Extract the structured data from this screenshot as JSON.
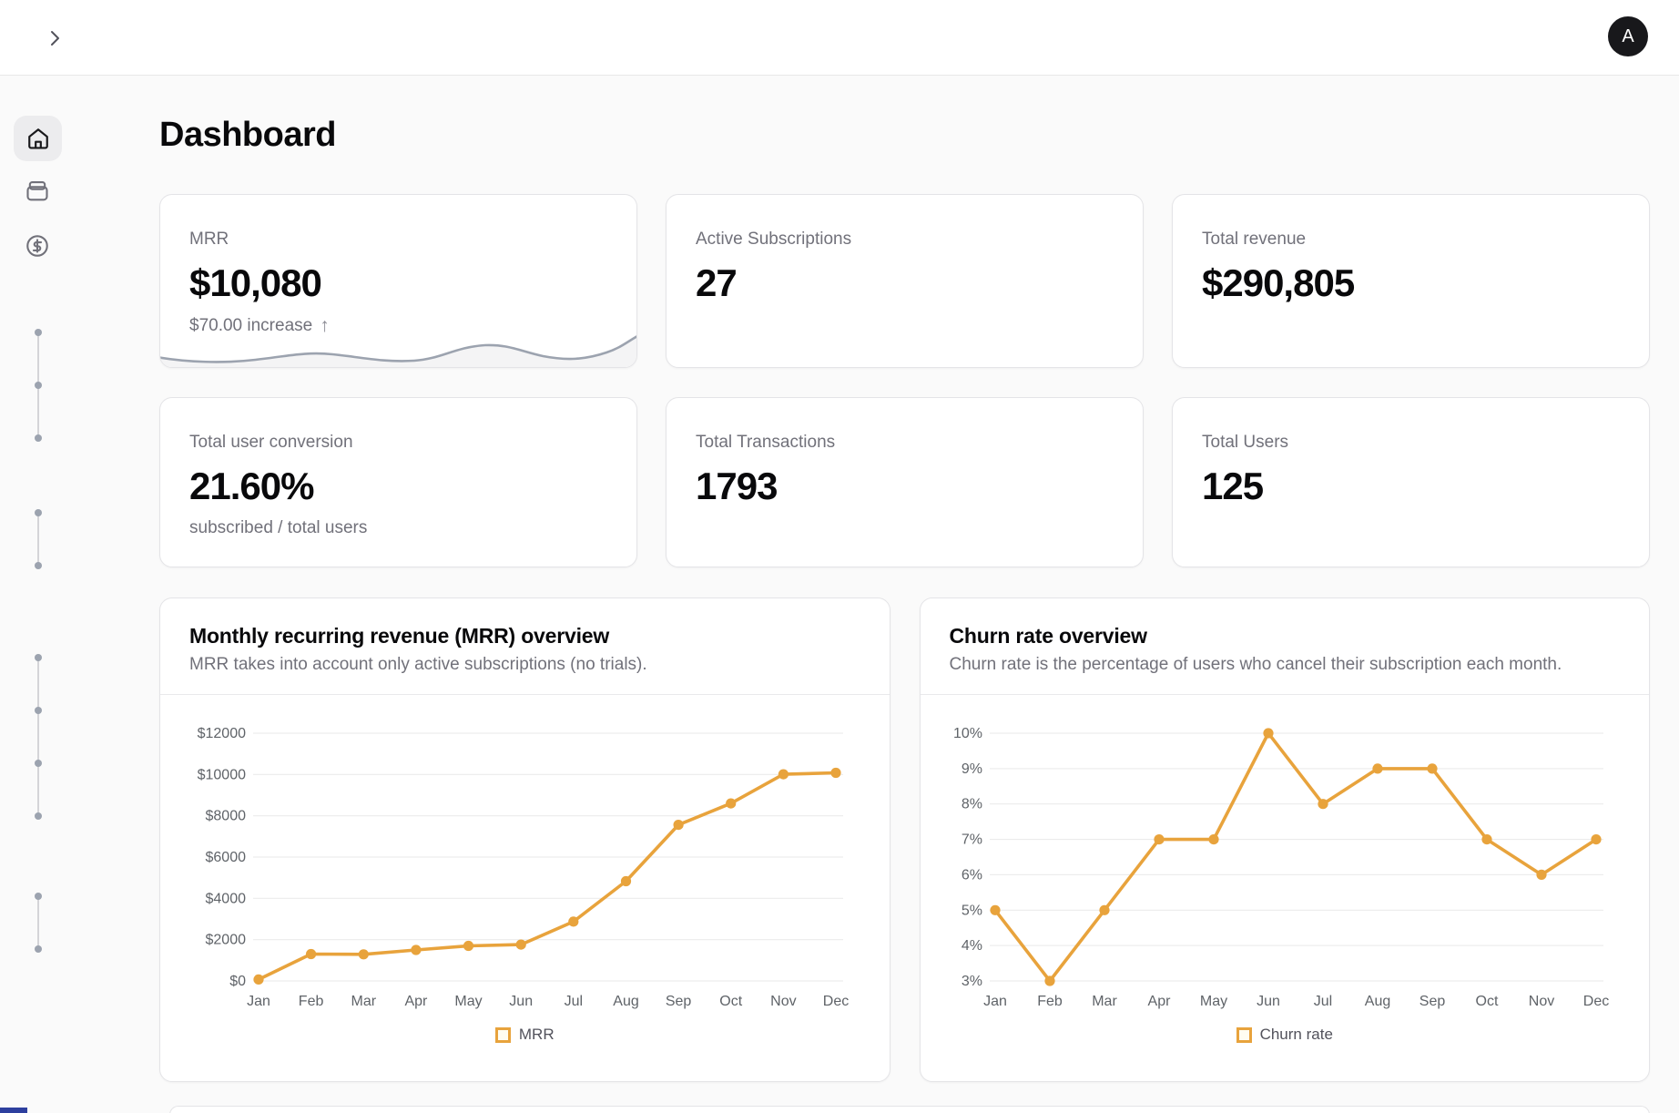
{
  "header": {
    "avatar_initial": "A"
  },
  "icons": {
    "arrow_up": "↑"
  },
  "page_title": "Dashboard",
  "stats": [
    {
      "label": "MRR",
      "value": "$10,080",
      "sub": "$70.00 increase"
    },
    {
      "label": "Active Subscriptions",
      "value": "27"
    },
    {
      "label": "Total revenue",
      "value": "$290,805"
    },
    {
      "label": "Total user conversion",
      "value": "21.60%",
      "sub": "subscribed / total users"
    },
    {
      "label": "Total Transactions",
      "value": "1793"
    },
    {
      "label": "Total Users",
      "value": "125"
    }
  ],
  "chart_data": [
    {
      "type": "line",
      "title": "Monthly recurring revenue (MRR) overview",
      "subtitle": "MRR takes into account only active subscriptions (no trials).",
      "categories": [
        "Jan",
        "Feb",
        "Mar",
        "Apr",
        "May",
        "Jun",
        "Jul",
        "Aug",
        "Sep",
        "Oct",
        "Nov",
        "Dec"
      ],
      "values": [
        70,
        1300,
        1290,
        1500,
        1700,
        1760,
        2870,
        4830,
        7560,
        8600,
        10010,
        10080
      ],
      "ylim": [
        0,
        12000
      ],
      "yticks": [
        0,
        2000,
        4000,
        6000,
        8000,
        10000,
        12000
      ],
      "y_prefix": "$",
      "y_suffix": "",
      "label_width": 62,
      "legend": "MRR",
      "grid": true,
      "legend_position": "bottom",
      "line_color": "#E8A33C"
    },
    {
      "type": "line",
      "title": "Churn rate overview",
      "subtitle": "Churn rate is the percentage of users who cancel their subscription each month.",
      "categories": [
        "Jan",
        "Feb",
        "Mar",
        "Apr",
        "May",
        "Jun",
        "Jul",
        "Aug",
        "Sep",
        "Oct",
        "Nov",
        "Dec"
      ],
      "values": [
        5,
        3,
        5,
        7,
        7,
        10,
        8,
        9,
        9,
        7,
        6,
        7
      ],
      "ylim": [
        3,
        10
      ],
      "yticks": [
        3,
        4,
        5,
        6,
        7,
        8,
        9,
        10
      ],
      "y_prefix": "",
      "y_suffix": "%",
      "label_width": 36,
      "legend": "Churn rate",
      "grid": true,
      "legend_position": "bottom",
      "line_color": "#E8A33C"
    }
  ],
  "colors": {
    "accent": "#E8A33C",
    "sparkline": "#9CA3AF",
    "avatar_bg": "#18181B",
    "grid_line": "#e9e9e9"
  }
}
